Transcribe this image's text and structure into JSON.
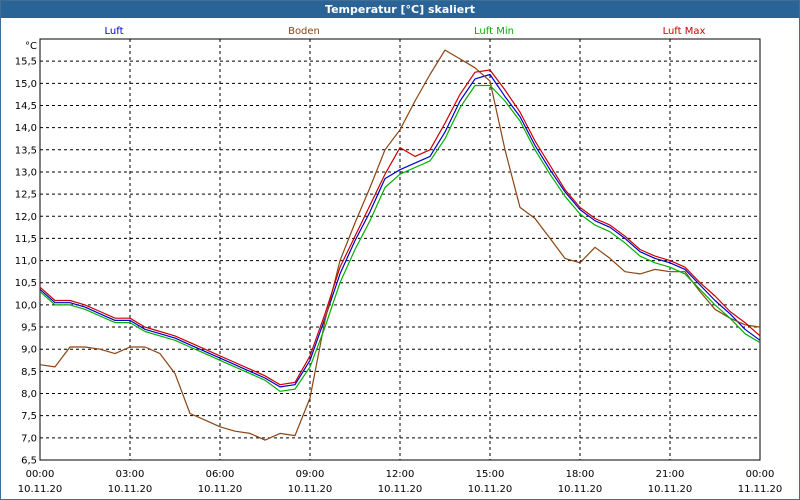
{
  "window": {
    "title": "Temperatur [°C] skaliert"
  },
  "chart_data": {
    "type": "line",
    "title": "Temperatur [°C] skaliert",
    "ylabel": "°C",
    "xlabel": "",
    "ylim": [
      6.5,
      16.0
    ],
    "xlim": [
      0,
      24
    ],
    "grid": true,
    "y_ticks": [
      "6,5",
      "7,0",
      "7,5",
      "8,0",
      "8,5",
      "9,0",
      "9,5",
      "10,0",
      "10,5",
      "11,0",
      "11,5",
      "12,0",
      "12,5",
      "13,0",
      "13,5",
      "14,0",
      "14,5",
      "15,0",
      "15,5"
    ],
    "x_ticks": [
      {
        "time": "00:00",
        "date": "10.11.20"
      },
      {
        "time": "03:00",
        "date": "10.11.20"
      },
      {
        "time": "06:00",
        "date": "10.11.20"
      },
      {
        "time": "09:00",
        "date": "10.11.20"
      },
      {
        "time": "12:00",
        "date": "10.11.20"
      },
      {
        "time": "15:00",
        "date": "10.11.20"
      },
      {
        "time": "18:00",
        "date": "10.11.20"
      },
      {
        "time": "21:00",
        "date": "10.11.20"
      },
      {
        "time": "00:00",
        "date": "11.11.20"
      }
    ],
    "x": [
      0,
      0.5,
      1,
      1.5,
      2,
      2.5,
      3,
      3.5,
      4,
      4.5,
      5,
      5.5,
      6,
      6.5,
      7,
      7.5,
      8,
      8.5,
      9,
      9.5,
      10,
      10.5,
      11,
      11.5,
      12,
      12.5,
      13,
      13.5,
      14,
      14.5,
      15,
      15.5,
      16,
      16.5,
      17,
      17.5,
      18,
      18.5,
      19,
      19.5,
      20,
      20.5,
      21,
      21.5,
      22,
      22.5,
      23,
      23.5,
      24
    ],
    "series": [
      {
        "name": "Luft",
        "color": "#0000cc",
        "values": [
          10.35,
          10.05,
          10.05,
          9.95,
          9.8,
          9.65,
          9.65,
          9.45,
          9.35,
          9.25,
          9.1,
          8.95,
          8.8,
          8.65,
          8.5,
          8.35,
          8.15,
          8.2,
          8.75,
          9.7,
          10.7,
          11.45,
          12.1,
          12.85,
          13.05,
          13.2,
          13.35,
          13.9,
          14.6,
          15.1,
          15.2,
          14.7,
          14.25,
          13.6,
          13.05,
          12.55,
          12.15,
          11.9,
          11.75,
          11.5,
          11.2,
          11.05,
          10.95,
          10.8,
          10.45,
          10.1,
          9.8,
          9.45,
          9.2
        ]
      },
      {
        "name": "Boden",
        "color": "#8b4513",
        "values": [
          8.65,
          8.6,
          9.05,
          9.05,
          9.0,
          8.9,
          9.05,
          9.05,
          8.9,
          8.45,
          7.55,
          7.4,
          7.25,
          7.15,
          7.1,
          6.95,
          7.1,
          7.05,
          7.9,
          9.65,
          11.0,
          11.85,
          12.65,
          13.5,
          13.95,
          14.6,
          15.2,
          15.75,
          15.55,
          15.35,
          15.05,
          13.5,
          12.2,
          11.95,
          11.5,
          11.05,
          10.95,
          11.3,
          11.05,
          10.75,
          10.7,
          10.8,
          10.75,
          10.75,
          10.3,
          9.9,
          9.7,
          9.55,
          9.5
        ]
      },
      {
        "name": "Luft Min",
        "color": "#00b000",
        "values": [
          10.3,
          10.0,
          10.0,
          9.9,
          9.75,
          9.6,
          9.6,
          9.4,
          9.3,
          9.2,
          9.05,
          8.9,
          8.75,
          8.6,
          8.45,
          8.3,
          8.05,
          8.1,
          8.6,
          9.5,
          10.5,
          11.25,
          11.9,
          12.65,
          12.95,
          13.1,
          13.25,
          13.75,
          14.45,
          14.95,
          14.95,
          14.6,
          14.15,
          13.5,
          12.95,
          12.45,
          12.05,
          11.8,
          11.65,
          11.4,
          11.1,
          10.95,
          10.85,
          10.7,
          10.35,
          10.0,
          9.7,
          9.35,
          9.15
        ]
      },
      {
        "name": "Luft Max",
        "color": "#cc0000",
        "values": [
          10.4,
          10.1,
          10.1,
          10.0,
          9.85,
          9.7,
          9.7,
          9.5,
          9.4,
          9.3,
          9.15,
          9.0,
          8.85,
          8.7,
          8.55,
          8.4,
          8.2,
          8.25,
          8.85,
          9.8,
          10.85,
          11.55,
          12.25,
          12.95,
          13.55,
          13.35,
          13.5,
          14.1,
          14.75,
          15.25,
          15.3,
          14.85,
          14.35,
          13.7,
          13.15,
          12.6,
          12.2,
          11.95,
          11.8,
          11.55,
          11.25,
          11.1,
          11.0,
          10.85,
          10.5,
          10.2,
          9.85,
          9.6,
          9.3
        ]
      }
    ]
  }
}
